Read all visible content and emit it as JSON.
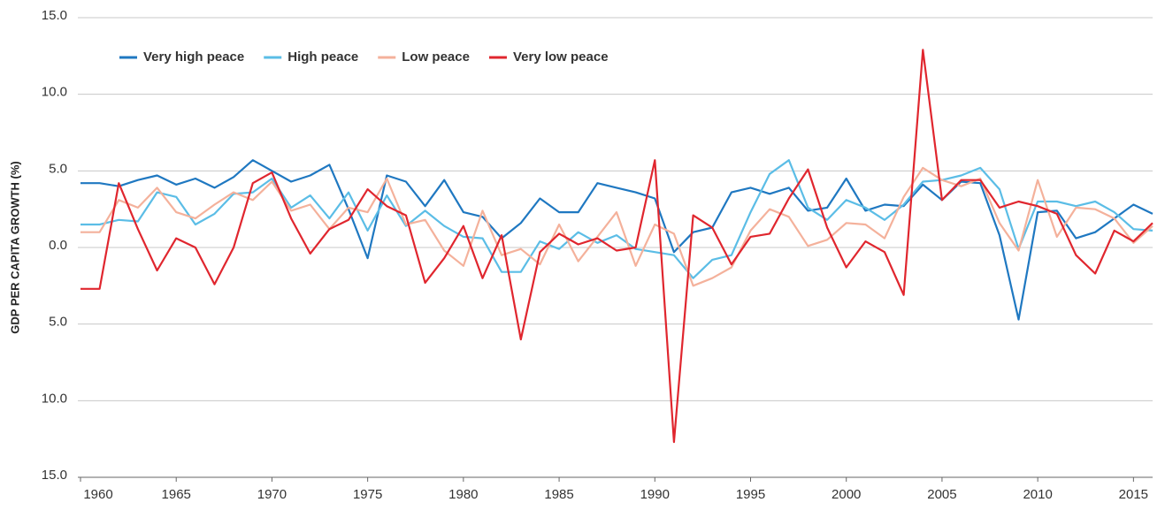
{
  "chart_data": {
    "type": "line",
    "y_label": "GDP PER CAPITA GROWTH (%)",
    "x": [
      1960,
      1961,
      1962,
      1963,
      1964,
      1965,
      1966,
      1967,
      1968,
      1969,
      1970,
      1971,
      1972,
      1973,
      1974,
      1975,
      1976,
      1977,
      1978,
      1979,
      1980,
      1981,
      1982,
      1983,
      1984,
      1985,
      1986,
      1987,
      1988,
      1989,
      1990,
      1991,
      1992,
      1993,
      1994,
      1995,
      1996,
      1997,
      1998,
      1999,
      2000,
      2001,
      2002,
      2003,
      2004,
      2005,
      2006,
      2007,
      2008,
      2009,
      2010,
      2011,
      2012,
      2013,
      2014,
      2015,
      2016
    ],
    "series": [
      {
        "name": "Very high peace",
        "color": "#1f78c1",
        "values": [
          4.2,
          4.2,
          4.0,
          4.4,
          4.7,
          4.1,
          4.5,
          3.9,
          4.6,
          5.7,
          5.0,
          4.3,
          4.7,
          5.4,
          2.5,
          -0.7,
          4.7,
          4.3,
          2.7,
          4.4,
          2.3,
          2.0,
          0.6,
          1.6,
          3.2,
          2.3,
          2.3,
          4.2,
          3.9,
          3.6,
          3.2,
          -0.3,
          1.0,
          1.3,
          3.6,
          3.9,
          3.5,
          3.9,
          2.4,
          2.6,
          4.5,
          2.4,
          2.8,
          2.7,
          4.1,
          3.1,
          4.3,
          4.2,
          0.8,
          -4.7,
          2.3,
          2.4,
          0.6,
          1.0,
          1.9,
          2.8,
          2.2
        ]
      },
      {
        "name": "High peace",
        "color": "#5bbde6",
        "values": [
          1.5,
          1.5,
          1.8,
          1.7,
          3.6,
          3.3,
          1.5,
          2.2,
          3.5,
          3.6,
          4.5,
          2.6,
          3.4,
          1.9,
          3.6,
          1.1,
          3.4,
          1.4,
          2.4,
          1.4,
          0.7,
          0.6,
          -1.6,
          -1.6,
          0.4,
          -0.1,
          1.0,
          0.3,
          0.8,
          -0.1,
          -0.3,
          -0.5,
          -2.0,
          -0.8,
          -0.5,
          2.3,
          4.8,
          5.7,
          2.6,
          1.8,
          3.1,
          2.6,
          1.8,
          2.8,
          4.3,
          4.4,
          4.7,
          5.2,
          3.8,
          -0.1,
          3.0,
          3.0,
          2.7,
          3.0,
          2.3,
          1.2,
          1.1
        ]
      },
      {
        "name": "Low peace",
        "color": "#f4b19b",
        "values": [
          1.0,
          1.0,
          3.1,
          2.6,
          3.9,
          2.3,
          1.9,
          2.8,
          3.6,
          3.1,
          4.3,
          2.4,
          2.8,
          1.2,
          2.6,
          2.3,
          4.5,
          1.5,
          1.8,
          -0.2,
          -1.2,
          2.4,
          -0.5,
          -0.1,
          -1.1,
          1.5,
          -0.9,
          0.7,
          2.3,
          -1.2,
          1.5,
          0.9,
          -2.5,
          -2.0,
          -1.3,
          1.1,
          2.5,
          2.0,
          0.1,
          0.5,
          1.6,
          1.5,
          0.6,
          3.3,
          5.2,
          4.4,
          4.0,
          4.5,
          1.6,
          -0.2,
          4.4,
          0.7,
          2.6,
          2.5,
          1.9,
          0.3,
          1.4
        ]
      },
      {
        "name": "Very low peace",
        "color": "#e0262e",
        "values": [
          -2.7,
          -2.7,
          4.2,
          1.2,
          -1.5,
          0.6,
          0.0,
          -2.4,
          0.0,
          4.2,
          4.9,
          1.9,
          -0.4,
          1.2,
          1.8,
          3.8,
          2.7,
          2.1,
          -2.3,
          -0.7,
          1.4,
          -2.0,
          0.8,
          -6.0,
          -0.3,
          0.9,
          0.2,
          0.6,
          -0.2,
          0.0,
          5.7,
          -12.7,
          2.1,
          1.3,
          -1.1,
          0.7,
          0.9,
          3.2,
          5.1,
          1.3,
          -1.3,
          0.4,
          -0.3,
          -3.1,
          12.9,
          3.1,
          4.4,
          4.4,
          2.6,
          3.0,
          2.7,
          2.2,
          -0.5,
          -1.7,
          1.1,
          0.4,
          1.6
        ]
      }
    ],
    "xlim": [
      1960,
      2016
    ],
    "xticks": [
      1960,
      1965,
      1970,
      1975,
      1980,
      1985,
      1990,
      1995,
      2000,
      2005,
      2010,
      2015
    ],
    "ylim": [
      -15,
      15
    ],
    "yticks": [
      {
        "value": -15,
        "label": "15.0"
      },
      {
        "value": -10,
        "label": "10.0"
      },
      {
        "value": -5,
        "label": "5.0"
      },
      {
        "value": 0,
        "label": "0.0"
      },
      {
        "value": 5,
        "label": "5.0"
      },
      {
        "value": 10,
        "label": "10.0"
      },
      {
        "value": 15,
        "label": "15.0"
      }
    ],
    "grid": true,
    "legend": "top-left"
  }
}
